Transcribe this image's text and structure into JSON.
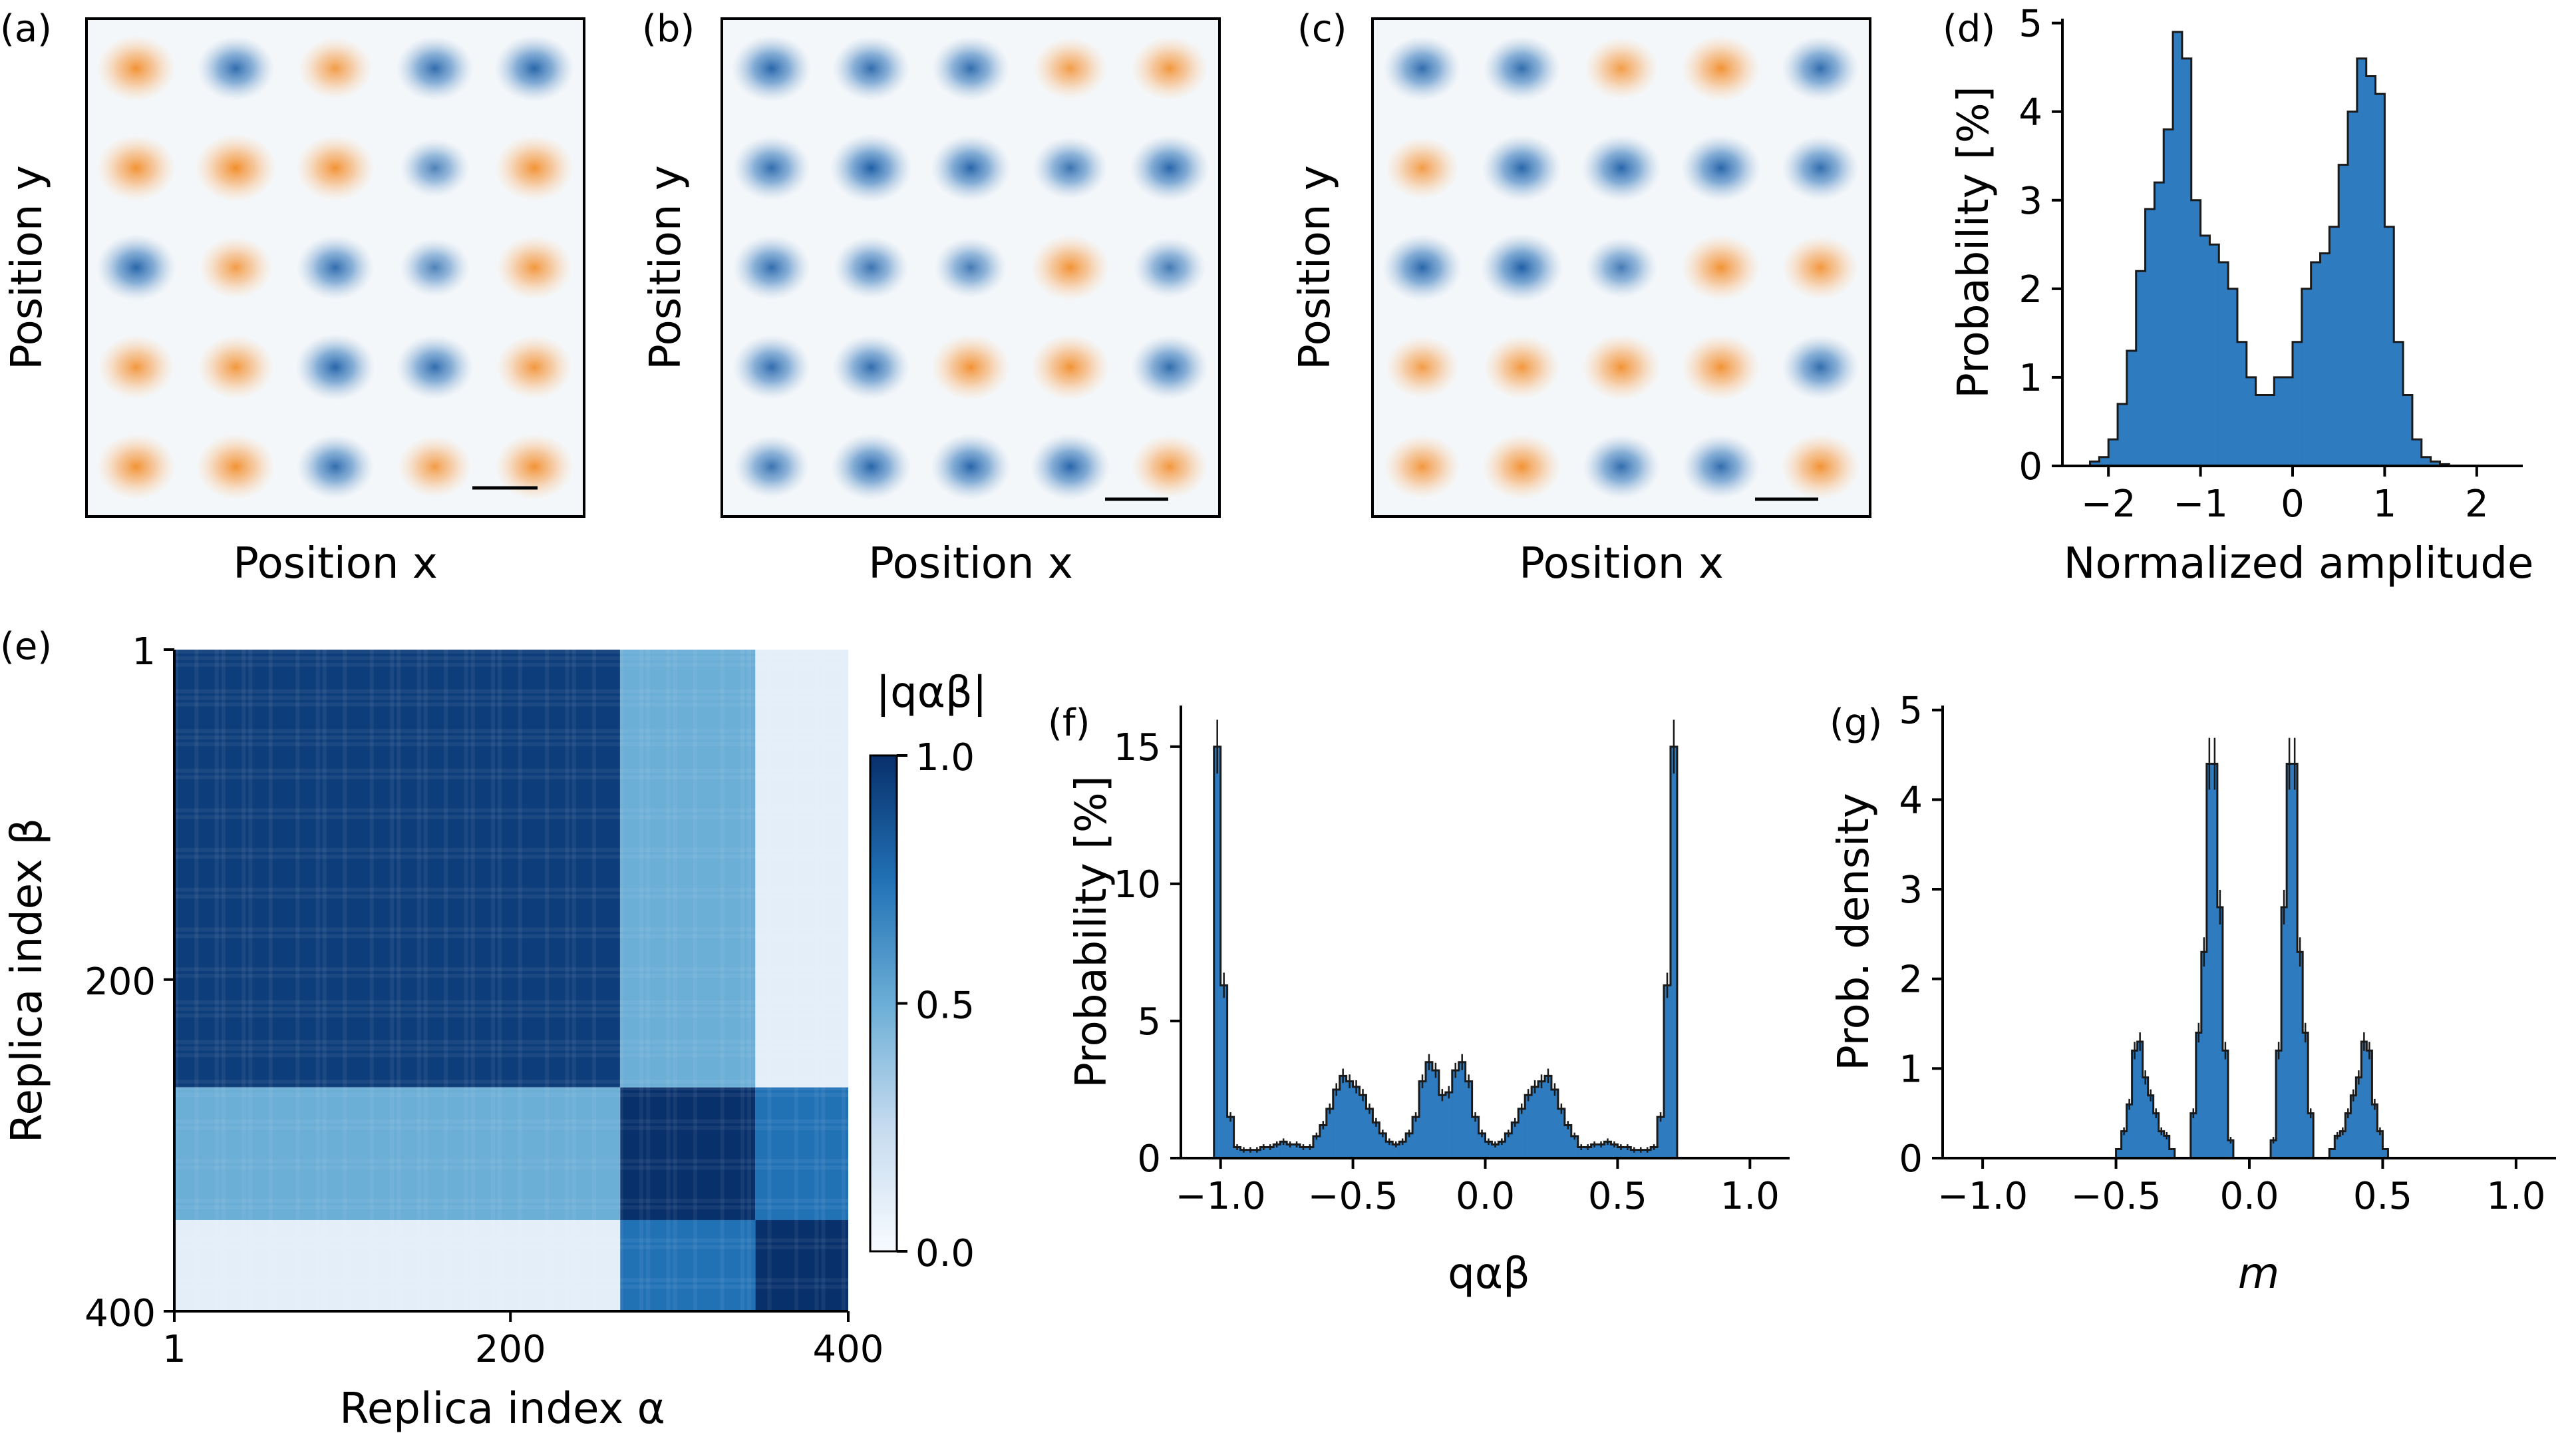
{
  "colors": {
    "blue": "#1f5fa6",
    "dark_blue": "#08306b",
    "orange": "#f28e2b",
    "hist_fill": "#2f7bbf",
    "hist_edge": "#1a1a1a"
  },
  "chart_data": [
    {
      "id": "a",
      "type": "heatmap",
      "label": "(a)",
      "xlabel": "Position x",
      "ylabel": "Position y",
      "grid_rows": 5,
      "grid_cols": 5,
      "spot_signs": [
        [
          1,
          -1,
          1,
          -1,
          -1
        ],
        [
          1,
          1,
          1,
          -1,
          1
        ],
        [
          -1,
          1,
          -1,
          -1,
          1
        ],
        [
          1,
          1,
          -1,
          -1,
          1
        ],
        [
          1,
          1,
          -1,
          1,
          1
        ]
      ],
      "spot_strengths": [
        [
          0.9,
          0.8,
          0.7,
          0.8,
          0.9
        ],
        [
          0.9,
          1.0,
          0.9,
          0.5,
          0.9
        ],
        [
          0.9,
          0.7,
          0.8,
          0.5,
          0.8
        ],
        [
          0.8,
          0.8,
          0.9,
          0.8,
          0.8
        ],
        [
          0.9,
          0.9,
          0.8,
          0.7,
          0.9
        ]
      ],
      "scale_bar": true
    },
    {
      "id": "b",
      "type": "heatmap",
      "label": "(b)",
      "xlabel": "Position x",
      "ylabel": "Position y",
      "grid_rows": 5,
      "grid_cols": 5,
      "spot_signs": [
        [
          -1,
          -1,
          -1,
          1,
          1
        ],
        [
          -1,
          -1,
          -1,
          -1,
          -1
        ],
        [
          -1,
          -1,
          -1,
          1,
          -1
        ],
        [
          -1,
          -1,
          1,
          1,
          -1
        ],
        [
          -1,
          -1,
          -1,
          -1,
          1
        ]
      ],
      "spot_strengths": [
        [
          0.9,
          0.8,
          0.8,
          0.7,
          0.8
        ],
        [
          0.8,
          1.0,
          0.9,
          0.7,
          0.9
        ],
        [
          0.8,
          0.7,
          0.6,
          0.9,
          0.6
        ],
        [
          0.8,
          0.8,
          0.9,
          0.9,
          0.8
        ],
        [
          0.7,
          0.9,
          0.9,
          0.9,
          0.8
        ]
      ],
      "scale_bar": true
    },
    {
      "id": "c",
      "type": "heatmap",
      "label": "(c)",
      "xlabel": "Position x",
      "ylabel": "Position y",
      "grid_rows": 5,
      "grid_cols": 5,
      "spot_signs": [
        [
          -1,
          -1,
          1,
          1,
          -1
        ],
        [
          1,
          -1,
          -1,
          -1,
          -1
        ],
        [
          -1,
          -1,
          -1,
          1,
          1
        ],
        [
          1,
          1,
          1,
          1,
          -1
        ],
        [
          1,
          1,
          -1,
          -1,
          1
        ]
      ],
      "spot_strengths": [
        [
          0.8,
          0.8,
          0.7,
          0.9,
          0.8
        ],
        [
          0.7,
          0.9,
          0.9,
          0.9,
          0.8
        ],
        [
          0.9,
          1.0,
          0.6,
          0.9,
          0.8
        ],
        [
          0.7,
          0.8,
          0.9,
          0.9,
          0.8
        ],
        [
          0.8,
          0.9,
          0.8,
          0.8,
          0.9
        ]
      ],
      "scale_bar": true
    },
    {
      "id": "d",
      "type": "bar",
      "label": "(d)",
      "xlabel": "Normalized amplitude",
      "ylabel": "Probability [%]",
      "xlim": [
        -2.5,
        2.5
      ],
      "ylim": [
        0,
        5.05
      ],
      "xticks": [
        -2,
        -1,
        0,
        1,
        2
      ],
      "xtick_labels": [
        "−2",
        "−1",
        "0",
        "1",
        "2"
      ],
      "yticks": [
        0,
        1,
        2,
        3,
        4,
        5
      ],
      "ytick_labels": [
        "0",
        "1",
        "2",
        "3",
        "4",
        "5"
      ],
      "bin_start": -2.2,
      "bin_width": 0.1,
      "values": [
        0.05,
        0.1,
        0.3,
        0.7,
        1.3,
        2.2,
        2.9,
        3.2,
        3.8,
        4.9,
        4.6,
        3.0,
        2.6,
        2.5,
        2.3,
        2.0,
        1.4,
        1.0,
        0.8,
        0.8,
        1.0,
        1.0,
        1.4,
        2.0,
        2.3,
        2.4,
        2.7,
        3.4,
        4.0,
        4.6,
        4.4,
        4.2,
        2.7,
        1.4,
        0.8,
        0.3,
        0.1,
        0.05,
        0.02,
        0.0,
        0.0,
        0.0,
        0.0,
        0.0
      ]
    },
    {
      "id": "e",
      "type": "heatmap",
      "label": "(e)",
      "xlabel": "Replica index α",
      "ylabel": "Replica index β",
      "colorbar_title": "|qαβ|",
      "colorbar_ticks": [
        0,
        0.5,
        1
      ],
      "colorbar_tick_labels": [
        "0.0",
        "0.5",
        "1.0"
      ],
      "xticks": [
        1,
        200,
        400
      ],
      "xtick_labels": [
        "1",
        "200",
        "400"
      ],
      "yticks": [
        1,
        200,
        400
      ],
      "ytick_labels": [
        "1",
        "200",
        "400"
      ],
      "n_replicas": 400,
      "block_bounds": [
        1,
        265,
        345,
        400
      ],
      "block_values": [
        [
          0.95,
          0.5,
          0.1
        ],
        [
          0.5,
          1.0,
          0.75
        ],
        [
          0.1,
          0.75,
          1.0
        ]
      ]
    },
    {
      "id": "f",
      "type": "bar",
      "label": "(f)",
      "xlabel": "qαβ",
      "ylabel": "Probability [%]",
      "xlim": [
        -1.15,
        1.15
      ],
      "ylim": [
        0,
        16.5
      ],
      "xticks": [
        -1,
        -0.5,
        0,
        0.5,
        1
      ],
      "xtick_labels": [
        "−1.0",
        "−0.5",
        "0.0",
        "0.5",
        "1.0"
      ],
      "yticks": [
        0,
        5,
        10,
        15
      ],
      "ytick_labels": [
        "0",
        "5",
        "10",
        "15"
      ],
      "bin_start": -1.025,
      "bin_width": 0.025,
      "values": [
        15.0,
        6.3,
        1.5,
        0.4,
        0.3,
        0.3,
        0.3,
        0.4,
        0.4,
        0.5,
        0.6,
        0.5,
        0.5,
        0.4,
        0.4,
        0.8,
        1.2,
        1.8,
        2.5,
        3.0,
        2.8,
        2.6,
        2.3,
        1.8,
        1.3,
        0.9,
        0.6,
        0.5,
        0.6,
        0.9,
        1.5,
        2.8,
        3.5,
        3.2,
        2.3,
        2.4,
        3.2,
        3.5,
        2.8,
        1.5,
        0.9,
        0.6,
        0.5,
        0.6,
        0.9,
        1.3,
        1.8,
        2.3,
        2.6,
        2.8,
        3.0,
        2.5,
        1.8,
        1.2,
        0.8,
        0.4,
        0.4,
        0.5,
        0.5,
        0.6,
        0.5,
        0.4,
        0.4,
        0.3,
        0.3,
        0.3,
        0.4,
        1.5,
        6.3,
        15.0
      ]
    },
    {
      "id": "g",
      "type": "bar",
      "label": "(g)",
      "xlabel": "m",
      "ylabel": "Prob. density",
      "xlim": [
        -1.15,
        1.15
      ],
      "ylim": [
        0,
        5.05
      ],
      "xticks": [
        -1,
        -0.5,
        0,
        0.5,
        1
      ],
      "xtick_labels": [
        "−1.0",
        "−0.5",
        "0.0",
        "0.5",
        "1.0"
      ],
      "yticks": [
        0,
        1,
        2,
        3,
        4,
        5
      ],
      "ytick_labels": [
        "0",
        "1",
        "2",
        "3",
        "4",
        "5"
      ],
      "bin_start": -0.5,
      "bin_width": 0.02,
      "values": [
        0.1,
        0.3,
        0.6,
        1.2,
        1.3,
        0.9,
        0.7,
        0.5,
        0.3,
        0.25,
        0.1,
        0.0,
        0.0,
        0.0,
        0.5,
        1.4,
        2.3,
        4.4,
        4.4,
        2.8,
        1.2,
        0.2,
        0.0,
        0.0,
        0.0,
        0.0,
        0.0,
        0.0,
        0.0,
        0.2,
        1.2,
        2.8,
        4.4,
        4.4,
        2.3,
        1.4,
        0.5,
        0.0,
        0.0,
        0.0,
        0.1,
        0.25,
        0.3,
        0.5,
        0.7,
        0.9,
        1.3,
        1.2,
        0.6,
        0.3,
        0.1
      ]
    }
  ]
}
